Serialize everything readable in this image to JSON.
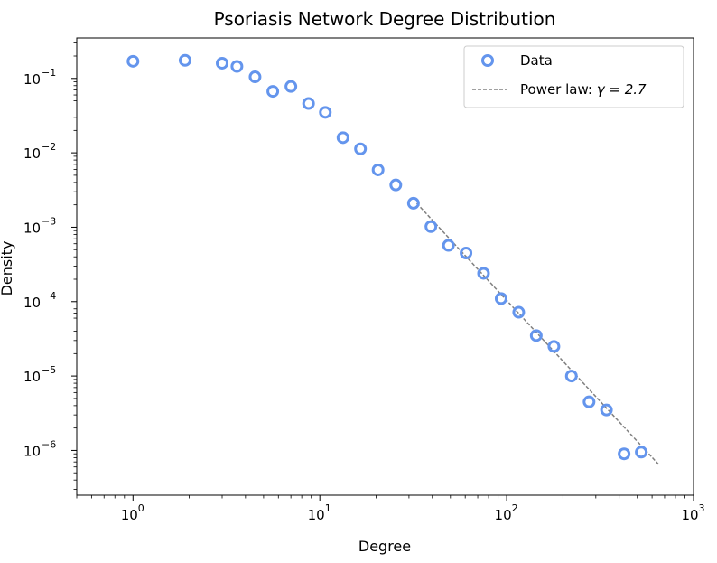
{
  "chart_data": {
    "type": "scatter",
    "title": "Psoriasis Network Degree Distribution",
    "xlabel": "Degree",
    "ylabel": "Density",
    "xscale": "log",
    "yscale": "log",
    "xlim": [
      0.5,
      1000
    ],
    "ylim": [
      2.5e-07,
      0.35
    ],
    "grid": false,
    "legend_position": "top-right",
    "x_ticks": [
      {
        "value": 1,
        "base": "10",
        "exp": "0"
      },
      {
        "value": 10,
        "base": "10",
        "exp": "1"
      },
      {
        "value": 100,
        "base": "10",
        "exp": "2"
      },
      {
        "value": 1000,
        "base": "10",
        "exp": "3"
      }
    ],
    "y_ticks": [
      {
        "value": 1e-06,
        "base": "10",
        "exp": "−6"
      },
      {
        "value": 1e-05,
        "base": "10",
        "exp": "−5"
      },
      {
        "value": 0.0001,
        "base": "10",
        "exp": "−4"
      },
      {
        "value": 0.001,
        "base": "10",
        "exp": "−3"
      },
      {
        "value": 0.01,
        "base": "10",
        "exp": "−2"
      },
      {
        "value": 0.1,
        "base": "10",
        "exp": "−1"
      }
    ],
    "series": [
      {
        "name": "Data",
        "style": "hollow-circle",
        "color": "#6495ed",
        "x": [
          1.0,
          1.9,
          3.0,
          3.6,
          4.5,
          5.6,
          7.0,
          8.7,
          10.7,
          13.3,
          16.5,
          20.5,
          25.5,
          31.7,
          39.3,
          48.8,
          60.6,
          75.2,
          93.4,
          116,
          144,
          179,
          222,
          276,
          342,
          425,
          525
        ],
        "y": [
          0.17,
          0.175,
          0.16,
          0.145,
          0.105,
          0.067,
          0.078,
          0.046,
          0.035,
          0.016,
          0.0113,
          0.0059,
          0.0037,
          0.0021,
          0.00102,
          0.00057,
          0.00045,
          0.00024,
          0.00011,
          7.2e-05,
          3.5e-05,
          2.5e-05,
          1e-05,
          4.5e-06,
          3.5e-06,
          9e-07,
          9.5e-07
        ]
      },
      {
        "name": "Power law: γ = 2.7",
        "legend_prefix": "Power law: ",
        "legend_math": "γ = 2.7",
        "style": "dashed-line",
        "color": "#808080",
        "gamma": 2.7,
        "x": [
          33,
          650
        ],
        "y": [
          0.0021,
          6.5e-07
        ]
      }
    ]
  }
}
